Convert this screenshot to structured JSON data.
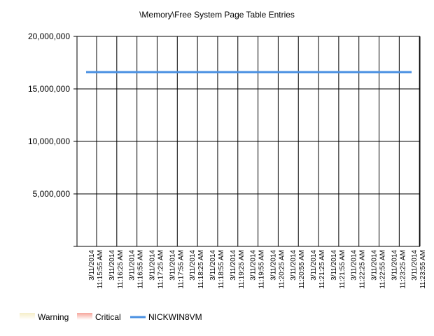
{
  "chart_data": {
    "type": "line",
    "title": "\\Memory\\Free System Page Table Entries",
    "xlabel": "",
    "ylabel": "",
    "ylim": [
      0,
      20000000
    ],
    "yticks": [
      0,
      5000000,
      10000000,
      15000000,
      20000000
    ],
    "ytick_labels": [
      "",
      "5,000,000",
      "10,000,000",
      "15,000,000",
      "20,000,000"
    ],
    "grid": true,
    "categories": [
      {
        "date": "3/11/2014",
        "time": "11:15:55 AM"
      },
      {
        "date": "3/11/2014",
        "time": "11:16:25 AM"
      },
      {
        "date": "3/11/2014",
        "time": "11:16:55 AM"
      },
      {
        "date": "3/11/2014",
        "time": "11:17:25 AM"
      },
      {
        "date": "3/11/2014",
        "time": "11:17:55 AM"
      },
      {
        "date": "3/11/2014",
        "time": "11:18:25 AM"
      },
      {
        "date": "3/11/2014",
        "time": "11:18:55 AM"
      },
      {
        "date": "3/11/2014",
        "time": "11:19:25 AM"
      },
      {
        "date": "3/11/2014",
        "time": "11:19:55 AM"
      },
      {
        "date": "3/11/2014",
        "time": "11:20:25 AM"
      },
      {
        "date": "3/11/2014",
        "time": "11:20:55 AM"
      },
      {
        "date": "3/11/2014",
        "time": "11:21:25 AM"
      },
      {
        "date": "3/11/2014",
        "time": "11:21:55 AM"
      },
      {
        "date": "3/11/2014",
        "time": "11:22:25 AM"
      },
      {
        "date": "3/11/2014",
        "time": "11:22:55 AM"
      },
      {
        "date": "3/11/2014",
        "time": "11:23:25 AM"
      },
      {
        "date": "3/11/2014",
        "time": "11:23:55 AM"
      }
    ],
    "series": [
      {
        "name": "NICKWIN8VM",
        "color": "#4a90e2",
        "values": [
          16600000,
          16600000,
          16600000,
          16600000,
          16600000,
          16600000,
          16600000,
          16600000,
          16600000,
          16600000,
          16600000,
          16600000,
          16600000,
          16600000,
          16600000,
          16600000,
          16600000
        ]
      }
    ],
    "legend": {
      "position": "bottom-left",
      "entries": [
        {
          "label": "Warning",
          "swatch": "band",
          "color": "#f5eec8"
        },
        {
          "label": "Critical",
          "swatch": "band",
          "color": "#f6a59b"
        },
        {
          "label": "NICKWIN8VM",
          "swatch": "line",
          "color": "#4a90e2"
        }
      ]
    }
  }
}
